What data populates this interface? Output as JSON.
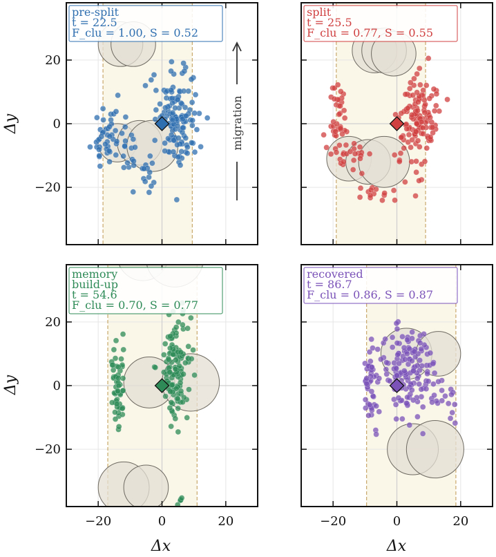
{
  "chart_data": {
    "type": "scatter",
    "xlabel": "Δx",
    "ylabel": "Δy",
    "xlim": [
      -30,
      30
    ],
    "ylim": [
      -38,
      38
    ],
    "xticks": [
      -20,
      0,
      20
    ],
    "yticks": [
      -20,
      0,
      20
    ],
    "xtick_labels": [
      "−20",
      "0",
      "20"
    ],
    "ytick_labels": [
      "−20",
      "0",
      "20"
    ],
    "grid": true,
    "annotation": "migration",
    "panels": [
      {
        "label_lines": [
          "pre-split",
          "t = 22.5",
          "F_clu = 1.00,  S = 0.52"
        ],
        "color": "#2f6fb0",
        "band": [
          -18.5,
          9.5
        ],
        "obstacles": [
          {
            "x": -13,
            "y": 25,
            "r": 7
          },
          {
            "x": -9,
            "y": 25,
            "r": 7
          },
          {
            "x": -14,
            "y": -6,
            "r": 6
          },
          {
            "x": -7,
            "y": -6,
            "r": 7
          },
          {
            "x": -3,
            "y": -7,
            "r": 8
          }
        ],
        "clusters": [
          {
            "cx": -18,
            "cy": -3,
            "sx": 1.8,
            "sy": 6,
            "n": 35,
            "seed": 11
          },
          {
            "cx": -11,
            "cy": -6,
            "sx": 3,
            "sy": 5,
            "n": 25,
            "seed": 12
          },
          {
            "cx": -4,
            "cy": -16,
            "sx": 1.3,
            "sy": 4,
            "n": 12,
            "seed": 13
          },
          {
            "cx": 5,
            "cy": 2,
            "sx": 3.5,
            "sy": 8,
            "n": 130,
            "seed": 14
          }
        ]
      },
      {
        "label_lines": [
          "split",
          "t = 25.5",
          "F_clu = 0.77,  S = 0.55"
        ],
        "color": "#d04040",
        "band": [
          -19,
          9
        ],
        "obstacles": [
          {
            "x": -7,
            "y": 23,
            "r": 7
          },
          {
            "x": -4,
            "y": 23,
            "r": 7
          },
          {
            "x": -1,
            "y": 22,
            "r": 7
          },
          {
            "x": -15,
            "y": -11,
            "r": 7
          },
          {
            "x": -9,
            "y": -12,
            "r": 7
          },
          {
            "x": -4,
            "y": -12,
            "r": 8
          }
        ],
        "clusters": [
          {
            "cx": -18,
            "cy": -1,
            "sx": 1.6,
            "sy": 7,
            "n": 45,
            "seed": 21
          },
          {
            "cx": -13,
            "cy": -10,
            "sx": 2,
            "sy": 3,
            "n": 15,
            "seed": 22
          },
          {
            "cx": -5,
            "cy": -22,
            "sx": 3,
            "sy": 1.2,
            "n": 14,
            "seed": 23
          },
          {
            "cx": 6,
            "cy": 1,
            "sx": 3.2,
            "sy": 8,
            "n": 130,
            "seed": 24
          }
        ]
      },
      {
        "label_lines": [
          "memory",
          "build-up",
          "t = 54.6",
          "F_clu = 0.70,  S = 0.77"
        ],
        "color": "#2e8b57",
        "band": [
          -17,
          11
        ],
        "obstacles": [
          {
            "x": -6,
            "y": 41,
            "r": 8
          },
          {
            "x": 4,
            "y": 40,
            "r": 9
          },
          {
            "x": -4,
            "y": 1,
            "r": 8
          },
          {
            "x": 9,
            "y": 1,
            "r": 9
          },
          {
            "x": -12,
            "y": -32,
            "r": 8
          },
          {
            "x": -5,
            "y": -32,
            "r": 7
          }
        ],
        "clusters": [
          {
            "cx": -14,
            "cy": -1,
            "sx": 1.1,
            "sy": 7,
            "n": 55,
            "seed": 31
          },
          {
            "cx": 4,
            "cy": 6,
            "sx": 2.3,
            "sy": 8.5,
            "n": 130,
            "seed": 32
          },
          {
            "cx": 6,
            "cy": -37,
            "sx": 0.7,
            "sy": 1.2,
            "n": 5,
            "seed": 33
          }
        ]
      },
      {
        "label_lines": [
          "recovered",
          "t = 86.7",
          "F_clu = 0.86,  S = 0.87"
        ],
        "color": "#7a52b8",
        "band": [
          -9.5,
          18.5
        ],
        "obstacles": [
          {
            "x": 3,
            "y": 10,
            "r": 8
          },
          {
            "x": 13,
            "y": 10,
            "r": 7
          },
          {
            "x": 5,
            "y": -20,
            "r": 8
          },
          {
            "x": 12,
            "y": -20,
            "r": 9
          }
        ],
        "clusters": [
          {
            "cx": -8,
            "cy": 0,
            "sx": 1.2,
            "sy": 6,
            "n": 45,
            "seed": 41
          },
          {
            "cx": 3,
            "cy": 5,
            "sx": 4.5,
            "sy": 7.5,
            "n": 140,
            "seed": 42
          },
          {
            "cx": 13,
            "cy": -3,
            "sx": 3,
            "sy": 3,
            "n": 12,
            "seed": 43
          },
          {
            "cx": 17,
            "cy": -10,
            "sx": 1,
            "sy": 3,
            "n": 5,
            "seed": 44
          }
        ]
      }
    ]
  }
}
